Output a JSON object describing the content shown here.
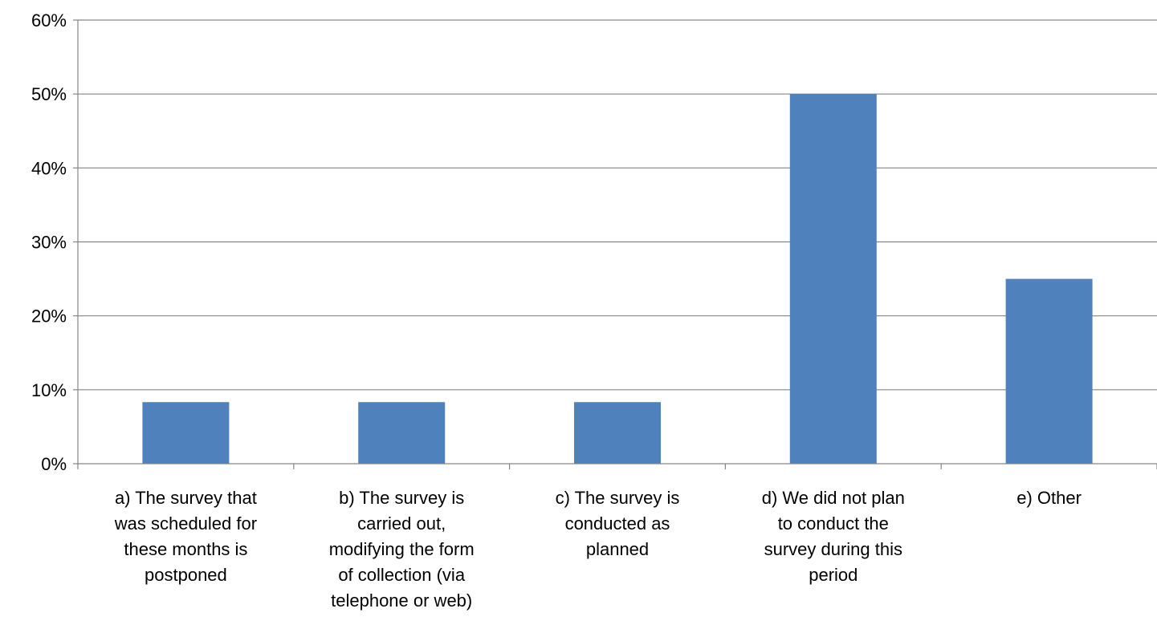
{
  "chart_data": {
    "type": "bar",
    "title": "",
    "xlabel": "",
    "ylabel": "",
    "categories": [
      [
        "a) The survey that",
        "was scheduled for",
        "these months is",
        "postponed"
      ],
      [
        "b) The survey is",
        "carried out,",
        "modifying the form",
        "of collection (via",
        "telephone or web)"
      ],
      [
        "c) The survey is",
        "conducted as",
        "planned"
      ],
      [
        "d) We did not plan",
        "to conduct the",
        "survey during this",
        "period"
      ],
      [
        "e) Other"
      ]
    ],
    "values": [
      8.33,
      8.33,
      8.33,
      50,
      25
    ],
    "ylim": [
      0,
      60
    ],
    "yticks": [
      0,
      10,
      20,
      30,
      40,
      50,
      60
    ],
    "ytick_labels": [
      "0%",
      "10%",
      "20%",
      "30%",
      "40%",
      "50%",
      "60%"
    ],
    "grid": true,
    "legend": "none",
    "colors": {
      "bar": "#4f81bd",
      "grid": "#868686",
      "axis": "#868686"
    }
  }
}
